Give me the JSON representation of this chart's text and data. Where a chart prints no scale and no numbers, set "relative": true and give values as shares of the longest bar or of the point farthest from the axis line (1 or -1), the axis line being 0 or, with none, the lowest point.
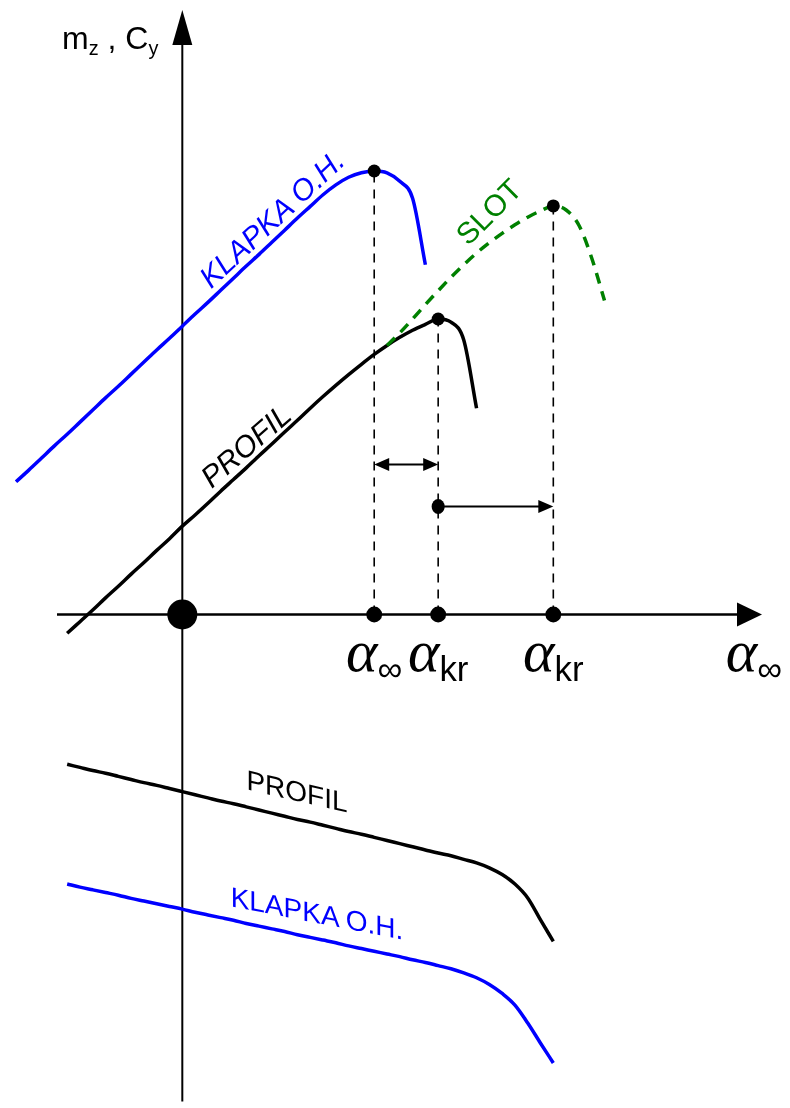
{
  "chart_data": {
    "type": "line",
    "xlabel": "α$_{∞}$",
    "ylabel": "m$_{z}$ , C$_{y}$",
    "relative": true,
    "tick_labels": "x",
    "categories": [
      null,
      null,
      null,
      null,
      null,
      null,
      null,
      null,
      null,
      null,
      null,
      null,
      null,
      null,
      null,
      null,
      null,
      null,
      null,
      null,
      null,
      null,
      null,
      null,
      null,
      null,
      null,
      null,
      "α$_{∞}$",
      null,
      null,
      null,
      null,
      "α$_{kr}$",
      null,
      null,
      null,
      null,
      null,
      null,
      null,
      null,
      "α$_{kr}$",
      null,
      null,
      null,
      null,
      null,
      null,
      null,
      null,
      null,
      null,
      null,
      null,
      null,
      null,
      null,
      null
    ],
    "series": [
      {
        "name": "KLAPKA O.H.",
        "color": "#0000ff",
        "values": [
          0.296,
          0.322,
          0.349,
          0.376,
          0.402,
          0.429,
          0.456,
          0.483,
          0.509,
          0.536,
          0.563,
          0.59,
          0.616,
          0.643,
          0.67,
          0.696,
          0.723,
          0.75,
          0.777,
          0.803,
          0.83,
          0.857,
          0.884,
          0.91,
          0.936,
          0.958,
          0.975,
          0.985,
          0.989,
          0.985,
          0.966,
          0.928,
          0.78,
          null,
          null,
          null,
          null,
          null,
          null,
          null,
          null,
          null,
          null,
          null,
          null,
          null,
          null,
          null,
          null,
          null,
          null,
          null,
          null,
          null,
          null,
          null,
          null,
          null,
          null
        ]
      },
      {
        "name": "SLOT",
        "color": "#008000",
        "line_style": "dashed",
        "values": [
          null,
          null,
          null,
          null,
          null,
          null,
          null,
          null,
          null,
          null,
          null,
          null,
          null,
          null,
          null,
          null,
          null,
          null,
          null,
          null,
          null,
          null,
          null,
          null,
          null,
          null,
          null,
          null,
          null,
          0.6,
          0.628,
          0.659,
          0.691,
          0.722,
          0.752,
          0.78,
          0.806,
          0.829,
          0.85,
          0.869,
          0.886,
          0.9,
          0.911,
          0.902,
          0.868,
          0.795,
          0.7,
          null,
          null,
          null,
          null,
          null,
          null,
          null,
          null,
          null,
          null,
          null,
          null
        ]
      },
      {
        "name": "PROFIL",
        "color": "#000000",
        "values": [
          null,
          null,
          null,
          null,
          -0.042,
          -0.016,
          0.01,
          0.037,
          0.063,
          0.09,
          0.116,
          0.143,
          0.169,
          0.197,
          0.222,
          0.248,
          0.275,
          0.301,
          0.327,
          0.354,
          0.38,
          0.407,
          0.433,
          0.46,
          0.486,
          0.511,
          0.535,
          0.558,
          0.58,
          0.6,
          0.618,
          0.634,
          0.647,
          0.659,
          0.652,
          0.612,
          0.46,
          null,
          null,
          null,
          null,
          null,
          null,
          null,
          null,
          null,
          null,
          null,
          null,
          null,
          null,
          null,
          null,
          null,
          null,
          null,
          null,
          null,
          null
        ]
      },
      {
        "name": "PROFIL",
        "color": "#000000",
        "values": [
          null,
          null,
          null,
          null,
          -0.334,
          -0.341,
          -0.348,
          -0.354,
          -0.361,
          -0.368,
          -0.375,
          -0.381,
          -0.388,
          -0.395,
          -0.402,
          -0.409,
          -0.416,
          -0.422,
          -0.429,
          -0.436,
          -0.443,
          -0.45,
          -0.457,
          -0.463,
          -0.47,
          -0.477,
          -0.484,
          -0.49,
          -0.497,
          -0.504,
          -0.511,
          -0.518,
          -0.525,
          -0.532,
          -0.538,
          -0.546,
          -0.554,
          -0.565,
          -0.58,
          -0.601,
          -0.632,
          -0.681,
          -0.729,
          null,
          null,
          null,
          null,
          null,
          null,
          null,
          null,
          null,
          null,
          null,
          null,
          null,
          null,
          null,
          null
        ]
      },
      {
        "name": "KLAPKA O.H.",
        "color": "#0000ff",
        "values": [
          null,
          null,
          null,
          null,
          -0.601,
          -0.608,
          -0.614,
          -0.62,
          -0.626,
          -0.633,
          -0.639,
          -0.645,
          -0.651,
          -0.657,
          -0.664,
          -0.67,
          -0.676,
          -0.682,
          -0.689,
          -0.695,
          -0.701,
          -0.707,
          -0.714,
          -0.72,
          -0.726,
          -0.732,
          -0.739,
          -0.745,
          -0.751,
          -0.757,
          -0.763,
          -0.77,
          -0.776,
          -0.783,
          -0.79,
          -0.799,
          -0.81,
          -0.825,
          -0.845,
          -0.871,
          -0.911,
          -0.956,
          -1,
          null,
          null,
          null,
          null,
          null,
          null,
          null,
          null,
          null,
          null,
          null,
          null,
          null,
          null,
          null,
          null
        ]
      },
      {
        "type": "lollipop",
        "color": "#000000",
        "marker": "circle",
        "line_style": "dashed",
        "values": [
          null,
          null,
          null,
          null,
          null,
          null,
          null,
          null,
          null,
          null,
          null,
          null,
          null,
          null,
          null,
          null,
          null,
          null,
          null,
          null,
          null,
          null,
          null,
          null,
          null,
          null,
          null,
          null,
          0.989,
          null,
          null,
          null,
          null,
          0.659,
          null,
          null,
          null,
          null,
          null,
          null,
          null,
          null,
          0.911,
          null,
          null,
          null,
          null,
          null,
          null,
          null,
          null,
          null,
          null,
          null,
          null,
          null,
          null,
          null,
          null
        ]
      },
      {
        "type": "bubble",
        "color": "#000000",
        "values": [
          null,
          null,
          null,
          null,
          null,
          null,
          null,
          null,
          null,
          null,
          null,
          null,
          null,
          0,
          null,
          null,
          null,
          null,
          null,
          null,
          null,
          null,
          null,
          null,
          null,
          null,
          null,
          null,
          0,
          null,
          null,
          null,
          null,
          0,
          null,
          null,
          null,
          null,
          null,
          null,
          null,
          null,
          0,
          null,
          null,
          null,
          null,
          null,
          null,
          null,
          null,
          null,
          null,
          null,
          null,
          null,
          null,
          null,
          null
        ],
        "sizes": [
          null,
          null,
          null,
          null,
          null,
          null,
          null,
          null,
          null,
          null,
          null,
          null,
          null,
          1,
          null,
          null,
          null,
          null,
          null,
          null,
          null,
          null,
          null,
          null,
          null,
          null,
          null,
          null,
          0.28,
          null,
          null,
          null,
          null,
          0.28,
          null,
          null,
          null,
          null,
          null,
          null,
          null,
          null,
          0.28,
          null,
          null,
          null,
          null,
          null,
          null,
          null,
          null,
          null,
          null,
          null,
          null,
          null,
          null,
          null,
          null
        ]
      }
    ]
  }
}
